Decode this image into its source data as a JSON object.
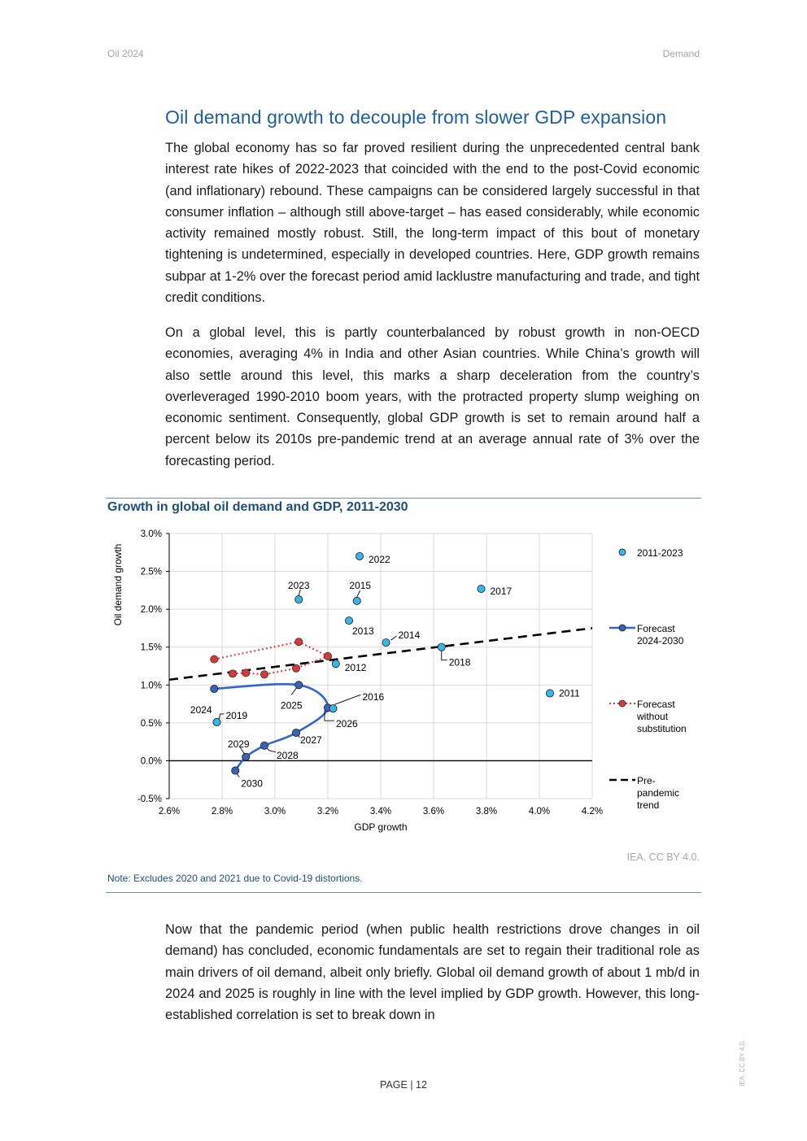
{
  "header": {
    "left": "Oil 2024",
    "right": "Demand"
  },
  "section_title": "Oil demand growth to decouple from slower GDP expansion",
  "paragraphs": [
    "The global economy has so far proved resilient during the unprecedented central bank interest rate hikes of 2022-2023 that coincided with the end to the post-Covid economic (and inflationary) rebound. These campaigns can be considered largely successful in that consumer inflation – although still above-target – has eased considerably, while economic activity remained mostly robust. Still, the long-term impact of this bout of monetary tightening is undetermined, especially in developed countries. Here, GDP growth remains subpar at 1-2% over the forecast period amid lacklustre manufacturing and trade, and tight credit conditions.",
    "On a global level, this is partly counterbalanced by robust growth in non-OECD economies, averaging 4% in India and other Asian countries. While China’s growth will also settle around this level, this marks a sharp deceleration from the country’s overleveraged 1990-2010 boom years, with the protracted property slump weighing on economic sentiment. Consequently, global GDP growth is set to remain around half a percent below its 2010s pre-pandemic trend at an average annual rate of 3% over the forecasting period.",
    "Now that the pandemic period (when public health restrictions drove changes in oil demand) has concluded, economic fundamentals are set to regain their traditional role as main drivers of oil demand, albeit only briefly. Global oil demand growth of about 1 mb/d in 2024 and 2025 is roughly in line with the level implied by GDP growth. However, this long-established correlation is set to break down in"
  ],
  "figure": {
    "title": "Growth in global oil demand and GDP, 2011-2030",
    "source": "IEA. CC BY 4.0.",
    "note": "Note: Excludes 2020 and 2021 due to Covid-19 distortions."
  },
  "page_number": "PAGE | 12",
  "side_license": "IEA. CC BY 4.0.",
  "chart_data": {
    "type": "scatter",
    "title": "Growth in global oil demand and GDP, 2011-2030",
    "xlabel": "GDP growth",
    "ylabel": "Oil demand growth",
    "xlim": [
      0.026,
      0.042
    ],
    "ylim": [
      -0.005,
      0.03
    ],
    "x_ticks": [
      "2.6%",
      "2.8%",
      "3.0%",
      "3.2%",
      "3.4%",
      "3.6%",
      "3.8%",
      "4.0%",
      "4.2%"
    ],
    "y_ticks": [
      "3.0%",
      "2.5%",
      "2.0%",
      "1.5%",
      "1.0%",
      "0.5%",
      "0.0%",
      "-0.5%"
    ],
    "grid": true,
    "legend_position": "right",
    "colors": {
      "historical": "#38b6e8",
      "forecast": "#3366cc",
      "forecast_marker": "#3a63b8",
      "no_substitution": "#d63a3a",
      "trend": "#000000",
      "grid": "#d9d9d9"
    },
    "series": [
      {
        "name": "2011-2023",
        "style": "markers",
        "points": [
          {
            "label": "2011",
            "x": 0.0404,
            "y": 0.0089
          },
          {
            "label": "2012",
            "x": 0.0323,
            "y": 0.0128
          },
          {
            "label": "2013",
            "x": 0.0328,
            "y": 0.0185
          },
          {
            "label": "2014",
            "x": 0.0342,
            "y": 0.0156
          },
          {
            "label": "2015",
            "x": 0.0331,
            "y": 0.0211
          },
          {
            "label": "2016",
            "x": 0.0322,
            "y": 0.0069
          },
          {
            "label": "2017",
            "x": 0.0378,
            "y": 0.0227
          },
          {
            "label": "2018",
            "x": 0.0363,
            "y": 0.015
          },
          {
            "label": "2019",
            "x": 0.0278,
            "y": 0.0051
          },
          {
            "label": "2022",
            "x": 0.0332,
            "y": 0.027
          },
          {
            "label": "2023",
            "x": 0.0309,
            "y": 0.0213
          }
        ]
      },
      {
        "name": "Forecast 2024-2030",
        "style": "line+markers",
        "points": [
          {
            "label": "2024",
            "x": 0.0277,
            "y": 0.0095
          },
          {
            "label": "2025",
            "x": 0.0309,
            "y": 0.01
          },
          {
            "label": "2026",
            "x": 0.032,
            "y": 0.007
          },
          {
            "label": "2027",
            "x": 0.0308,
            "y": 0.0037
          },
          {
            "label": "2028",
            "x": 0.0296,
            "y": 0.002
          },
          {
            "label": "2029",
            "x": 0.0289,
            "y": 0.0005
          },
          {
            "label": "2030",
            "x": 0.0285,
            "y": -0.0013
          }
        ]
      },
      {
        "name": "Forecast without substitution",
        "style": "dotted-line+markers",
        "points": [
          {
            "x": 0.0277,
            "y": 0.0134
          },
          {
            "x": 0.0309,
            "y": 0.0157
          },
          {
            "x": 0.032,
            "y": 0.0138
          },
          {
            "x": 0.0308,
            "y": 0.0122
          },
          {
            "x": 0.0296,
            "y": 0.0114
          },
          {
            "x": 0.0289,
            "y": 0.0116
          },
          {
            "x": 0.0284,
            "y": 0.0115
          }
        ]
      },
      {
        "name": "Pre-pandemic trend",
        "style": "dashed-line",
        "points": [
          {
            "x": 0.026,
            "y": 0.0107
          },
          {
            "x": 0.042,
            "y": 0.0175
          }
        ]
      }
    ],
    "legend": [
      "2011-2023",
      "Forecast 2024-2030",
      "Forecast without substitution",
      "Pre-pandemic trend"
    ]
  }
}
